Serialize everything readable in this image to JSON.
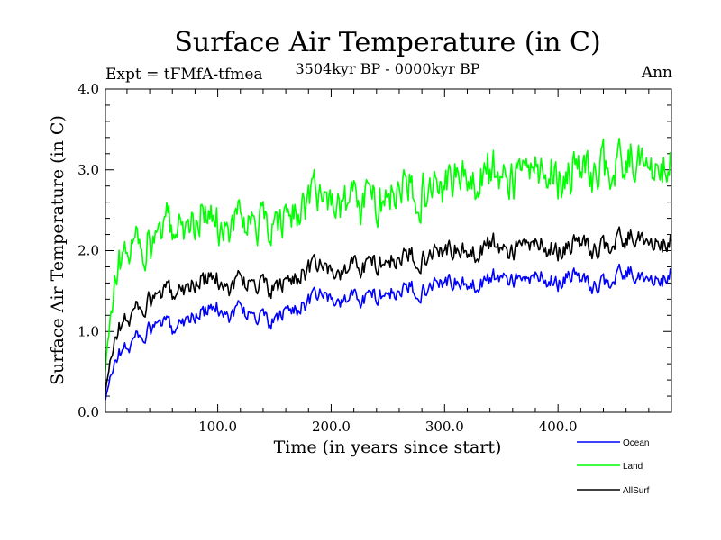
{
  "chart_data": {
    "type": "line",
    "title": "Surface Air Temperature (in C)",
    "subtitle_left": "Expt = tFMfA-tfmea",
    "subtitle_center": "3504kyr BP - 0000kyr BP",
    "subtitle_right": "Ann",
    "xlabel": "Time (in years since start)",
    "ylabel": "Surface Air Temperature (in C)",
    "xlim": [
      1,
      500
    ],
    "ylim": [
      0.0,
      4.0
    ],
    "xticks": [
      100,
      200,
      300,
      400
    ],
    "xtick_labels": [
      "100.0",
      "200.0",
      "300.0",
      "400.0"
    ],
    "yticks": [
      0,
      1,
      2,
      3,
      4
    ],
    "ytick_labels": [
      "0.0",
      "1.0",
      "2.0",
      "3.0",
      "4.0"
    ],
    "legend": "lower-right outside",
    "series": [
      {
        "name": "Ocean",
        "color": "#0000ff",
        "x": [
          1,
          10,
          20,
          30,
          40,
          50,
          60,
          70,
          80,
          90,
          100,
          110,
          120,
          130,
          140,
          150,
          160,
          170,
          180,
          190,
          200,
          210,
          220,
          230,
          240,
          250,
          260,
          270,
          280,
          290,
          300,
          310,
          320,
          330,
          340,
          350,
          360,
          370,
          380,
          390,
          400,
          410,
          420,
          430,
          440,
          450,
          460,
          470,
          480,
          490,
          500
        ],
        "values": [
          0.15,
          0.7,
          0.8,
          0.95,
          1.0,
          1.1,
          1.05,
          1.15,
          1.2,
          1.25,
          1.3,
          1.2,
          1.3,
          1.2,
          1.15,
          1.1,
          1.25,
          1.3,
          1.35,
          1.45,
          1.4,
          1.35,
          1.45,
          1.4,
          1.45,
          1.5,
          1.45,
          1.55,
          1.5,
          1.6,
          1.65,
          1.6,
          1.55,
          1.6,
          1.65,
          1.7,
          1.65,
          1.6,
          1.7,
          1.65,
          1.6,
          1.7,
          1.65,
          1.55,
          1.6,
          1.65,
          1.75,
          1.7,
          1.65,
          1.6,
          1.75
        ]
      },
      {
        "name": "Land",
        "color": "#00ff00",
        "x": [
          1,
          10,
          20,
          30,
          40,
          50,
          60,
          70,
          80,
          90,
          100,
          110,
          120,
          130,
          140,
          150,
          160,
          170,
          180,
          190,
          200,
          210,
          220,
          230,
          240,
          250,
          260,
          270,
          280,
          290,
          300,
          310,
          320,
          330,
          340,
          350,
          360,
          370,
          380,
          390,
          400,
          410,
          420,
          430,
          440,
          450,
          460,
          470,
          480,
          490,
          500
        ],
        "values": [
          0.5,
          1.8,
          2.0,
          2.1,
          2.0,
          2.2,
          2.3,
          2.35,
          2.4,
          2.4,
          2.35,
          2.3,
          2.4,
          2.35,
          2.3,
          2.25,
          2.4,
          2.55,
          2.6,
          2.65,
          2.6,
          2.55,
          2.7,
          2.65,
          2.6,
          2.75,
          2.7,
          2.8,
          2.75,
          2.8,
          2.9,
          2.95,
          2.85,
          2.9,
          3.0,
          2.95,
          2.9,
          2.95,
          3.05,
          3.0,
          2.95,
          2.9,
          3.0,
          2.95,
          3.05,
          3.0,
          3.1,
          3.2,
          3.05,
          2.95,
          3.1
        ]
      },
      {
        "name": "AllSurf",
        "color": "#000000",
        "x": [
          1,
          10,
          20,
          30,
          40,
          50,
          60,
          70,
          80,
          90,
          100,
          110,
          120,
          130,
          140,
          150,
          160,
          170,
          180,
          190,
          200,
          210,
          220,
          230,
          240,
          250,
          260,
          270,
          280,
          290,
          300,
          310,
          320,
          330,
          340,
          350,
          360,
          370,
          380,
          390,
          400,
          410,
          420,
          430,
          440,
          450,
          460,
          470,
          480,
          490,
          500
        ],
        "values": [
          0.25,
          1.0,
          1.15,
          1.3,
          1.35,
          1.45,
          1.5,
          1.55,
          1.6,
          1.65,
          1.65,
          1.55,
          1.65,
          1.6,
          1.55,
          1.5,
          1.6,
          1.7,
          1.75,
          1.8,
          1.75,
          1.7,
          1.85,
          1.8,
          1.85,
          1.9,
          1.85,
          1.95,
          1.9,
          2.0,
          2.05,
          2.0,
          1.95,
          2.0,
          2.1,
          2.05,
          2.0,
          2.05,
          2.1,
          2.05,
          2.0,
          2.05,
          2.1,
          2.0,
          2.05,
          2.1,
          2.15,
          2.2,
          2.1,
          2.05,
          2.15
        ]
      }
    ]
  }
}
